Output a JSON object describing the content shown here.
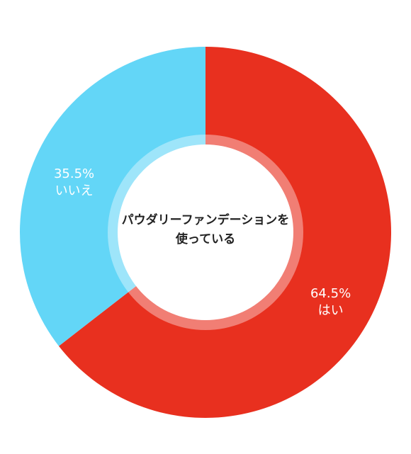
{
  "chart_data": {
    "type": "pie",
    "title": "パウダリーファンデーションを使っている",
    "title_lines": [
      "パウダリーファンデーションを",
      "使っている"
    ],
    "slices": [
      {
        "label": "はい",
        "value": 64.5,
        "value_text": "64.5%",
        "color": "#e8301f"
      },
      {
        "label": "いいえ",
        "value": 35.5,
        "value_text": "35.5%",
        "color": "#63d6f7"
      }
    ],
    "start_angle_deg": 0,
    "direction": "clockwise",
    "donut": true
  }
}
